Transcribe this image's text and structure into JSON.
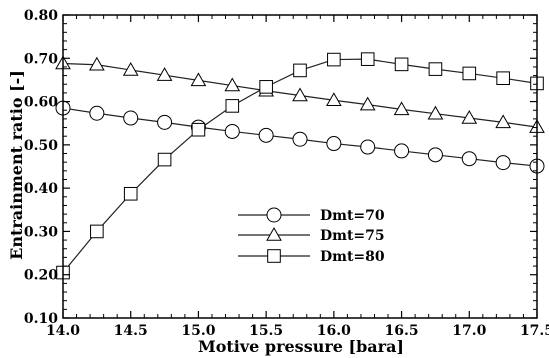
{
  "chart_data": {
    "type": "line",
    "xlabel": "Motive pressure [bara]",
    "ylabel": "Entrainment ratio [-]",
    "xlim": [
      14.0,
      17.5
    ],
    "ylim": [
      0.1,
      0.8
    ],
    "xticks": [
      14.0,
      14.5,
      15.0,
      15.5,
      16.0,
      16.5,
      17.0,
      17.5
    ],
    "yticks": [
      0.1,
      0.2,
      0.3,
      0.4,
      0.5,
      0.6,
      0.7,
      0.8
    ],
    "xtick_labels": [
      "14.0",
      "14.5",
      "15.0",
      "15.5",
      "16.0",
      "16.5",
      "17.0",
      "17.5"
    ],
    "ytick_labels": [
      "0.10",
      "0.20",
      "0.30",
      "0.40",
      "0.50",
      "0.60",
      "0.70",
      "0.80"
    ],
    "grid": false,
    "legend_position": "center-right",
    "x": [
      14.0,
      14.25,
      14.5,
      14.75,
      15.0,
      15.25,
      15.5,
      15.75,
      16.0,
      16.25,
      16.5,
      16.75,
      17.0,
      17.25,
      17.5
    ],
    "series": [
      {
        "name": "Dmt=70",
        "marker": "circle",
        "values": [
          0.585,
          0.573,
          0.562,
          0.552,
          0.541,
          0.531,
          0.522,
          0.513,
          0.503,
          0.495,
          0.486,
          0.477,
          0.468,
          0.459,
          0.451
        ]
      },
      {
        "name": "Dmt=75",
        "marker": "triangle",
        "values": [
          0.688,
          0.685,
          0.673,
          0.661,
          0.649,
          0.637,
          0.625,
          0.614,
          0.603,
          0.593,
          0.582,
          0.572,
          0.562,
          0.552,
          0.541
        ]
      },
      {
        "name": "Dmt=80",
        "marker": "square",
        "values": [
          0.205,
          0.3,
          0.387,
          0.466,
          0.535,
          0.59,
          0.634,
          0.672,
          0.697,
          0.698,
          0.686,
          0.675,
          0.665,
          0.654,
          0.642
        ]
      }
    ]
  }
}
